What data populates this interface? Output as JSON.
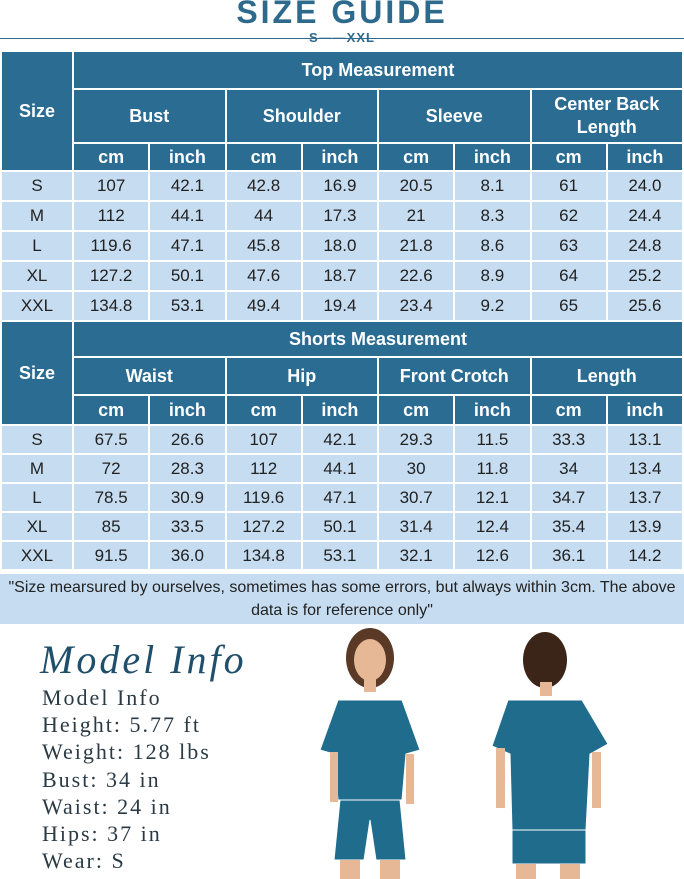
{
  "header": {
    "title": "SIZE GUIDE",
    "subtitle": "S——XXL"
  },
  "tables": [
    {
      "size_label": "Size",
      "title": "Top Measurement",
      "groups": [
        "Bust",
        "Shoulder",
        "Sleeve",
        "Center Back Length"
      ],
      "units": [
        "cm",
        "inch",
        "cm",
        "inch",
        "cm",
        "inch",
        "cm",
        "inch"
      ],
      "rows": [
        [
          "S",
          "107",
          "42.1",
          "42.8",
          "16.9",
          "20.5",
          "8.1",
          "61",
          "24.0"
        ],
        [
          "M",
          "112",
          "44.1",
          "44",
          "17.3",
          "21",
          "8.3",
          "62",
          "24.4"
        ],
        [
          "L",
          "119.6",
          "47.1",
          "45.8",
          "18.0",
          "21.8",
          "8.6",
          "63",
          "24.8"
        ],
        [
          "XL",
          "127.2",
          "50.1",
          "47.6",
          "18.7",
          "22.6",
          "8.9",
          "64",
          "25.2"
        ],
        [
          "XXL",
          "134.8",
          "53.1",
          "49.4",
          "19.4",
          "23.4",
          "9.2",
          "65",
          "25.6"
        ]
      ]
    },
    {
      "size_label": "Size",
      "title": "Shorts Measurement",
      "groups": [
        "Waist",
        "Hip",
        "Front Crotch",
        "Length"
      ],
      "units": [
        "cm",
        "inch",
        "cm",
        "inch",
        "cm",
        "inch",
        "cm",
        "inch"
      ],
      "rows": [
        [
          "S",
          "67.5",
          "26.6",
          "107",
          "42.1",
          "29.3",
          "11.5",
          "33.3",
          "13.1"
        ],
        [
          "M",
          "72",
          "28.3",
          "112",
          "44.1",
          "30",
          "11.8",
          "34",
          "13.4"
        ],
        [
          "L",
          "78.5",
          "30.9",
          "119.6",
          "47.1",
          "30.7",
          "12.1",
          "34.7",
          "13.7"
        ],
        [
          "XL",
          "85",
          "33.5",
          "127.2",
          "50.1",
          "31.4",
          "12.4",
          "35.4",
          "13.9"
        ],
        [
          "XXL",
          "91.5",
          "36.0",
          "134.8",
          "53.1",
          "32.1",
          "12.6",
          "36.1",
          "14.2"
        ]
      ]
    }
  ],
  "note": "\"Size mearsured by ourselves, sometimes has some errors, but always within 3cm. The above data is for reference only\"",
  "model": {
    "heading": "Model Info",
    "lines": [
      "Model Info",
      "Height: 5.77 ft",
      "Weight: 128 lbs",
      "Bust: 34 in",
      "Waist: 24 in",
      "Hips: 37 in",
      "Wear: S"
    ]
  }
}
